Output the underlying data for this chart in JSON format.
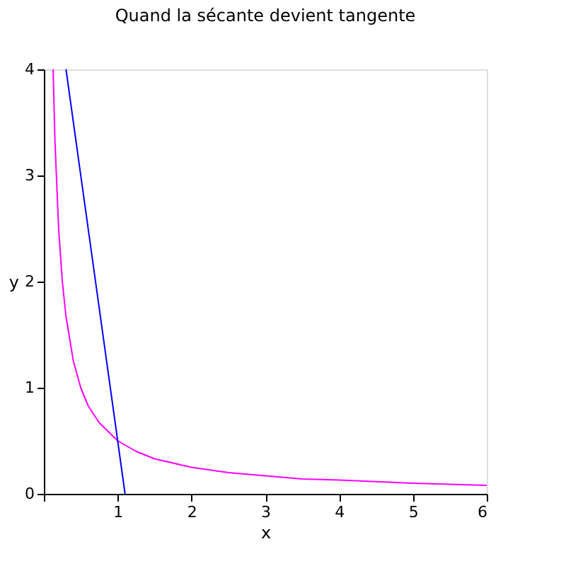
{
  "chart_data": {
    "type": "line",
    "title": "Quand la sécante devient tangente",
    "xlabel": "x",
    "ylabel": "y",
    "xlim": [
      0,
      6
    ],
    "ylim": [
      0,
      4
    ],
    "xticks": [
      {
        "value": 0,
        "label": null
      },
      1,
      2,
      3,
      4,
      5,
      6
    ],
    "yticks": [
      0,
      1,
      2,
      3,
      4
    ],
    "grid": false,
    "legend": false,
    "series": [
      {
        "color": "#ff00ff",
        "x": [
          0.125,
          0.15,
          0.2,
          0.25,
          0.3,
          0.4,
          0.5,
          0.6,
          0.75,
          1,
          1.25,
          1.5,
          2,
          2.5,
          3,
          3.5,
          4,
          5,
          6
        ],
        "values": [
          4,
          3.33,
          2.5,
          2,
          1.67,
          1.25,
          1,
          0.83,
          0.67,
          0.5,
          0.4,
          0.33,
          0.25,
          0.2,
          0.17,
          0.14,
          0.13,
          0.1,
          0.08
        ]
      },
      {
        "color": "#0000ff",
        "x": [
          0.3,
          1.1
        ],
        "values": [
          4,
          0
        ]
      }
    ]
  }
}
